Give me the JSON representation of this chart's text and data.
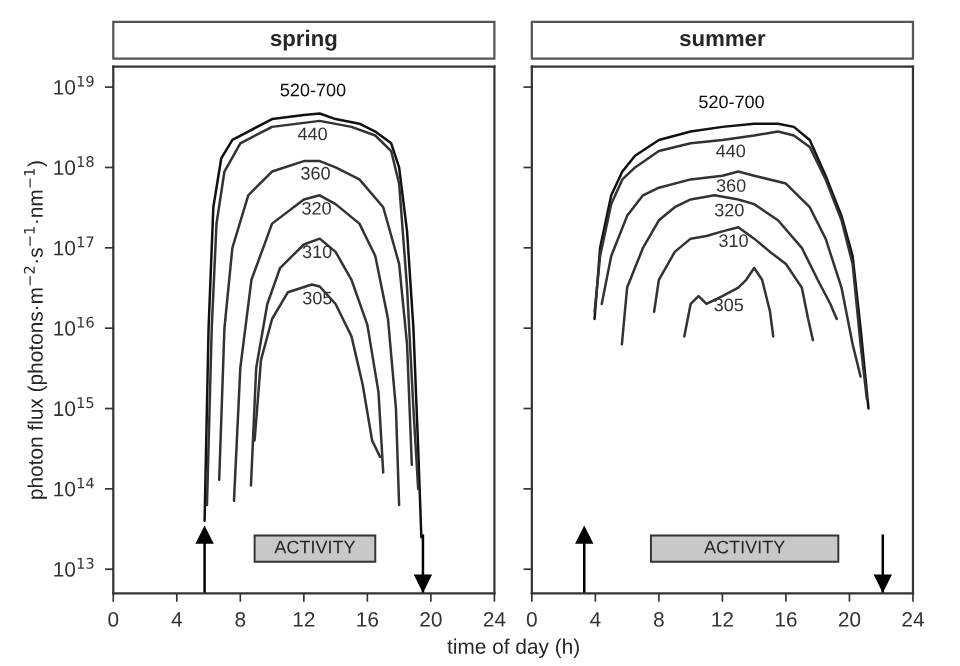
{
  "chart_data": [
    {
      "type": "line",
      "title": "spring",
      "xlabel": "time of day (h)",
      "ylabel": "photon flux (photons·m$^{−2}$·s$^{−1}$·nm$^{−1}$)",
      "log": true,
      "grid": false,
      "legend": false,
      "marker": "none",
      "line_style": "solid",
      "xlim": [
        0,
        24
      ],
      "xticks": [
        0,
        4,
        8,
        12,
        16,
        20,
        24
      ],
      "ylim": [
        5000000000000.0,
        1.8e+19
      ],
      "yticks": [
        {
          "value": 10000000000000.0,
          "label": "10$^{13}$"
        },
        {
          "value": 100000000000000.0,
          "label": "10$^{14}$"
        },
        {
          "value": 1000000000000000.0,
          "label": "10$^{15}$"
        },
        {
          "value": 1e+16,
          "label": "10$^{16}$"
        },
        {
          "value": 1e+17,
          "label": "10$^{17}$"
        },
        {
          "value": 1e+18,
          "label": "10$^{18}$"
        },
        {
          "value": 1e+19,
          "label": "10$^{19}$"
        }
      ],
      "series": [
        {
          "name": "520-700",
          "color": "#111111",
          "x": [
            5.75,
            6.0,
            6.3,
            6.8,
            7.5,
            8.5,
            10,
            12,
            13,
            14,
            15.5,
            16.5,
            17.5,
            18,
            18.5,
            18.9,
            19.2,
            19.4
          ],
          "values": [
            40000000000000.0,
            1e+16,
            3.2e+17,
            1.3e+18,
            2.2e+18,
            2.8e+18,
            4e+18,
            4.5e+18,
            4.7e+18,
            4e+18,
            3.5e+18,
            2.8e+18,
            2e+18,
            1e+18,
            1.6e+17,
            1e+16,
            320000000000000.0,
            25000000000000.0
          ]
        },
        {
          "name": "440",
          "color": "#333333",
          "x": [
            5.9,
            6.2,
            6.5,
            7,
            8,
            10,
            13,
            15,
            16.5,
            17.5,
            18,
            18.5,
            18.9,
            19.2
          ],
          "values": [
            63000000000000.0,
            1e+16,
            2e+17,
            8.9e+17,
            2e+18,
            3.2e+18,
            3.8e+18,
            3.2e+18,
            2.5e+18,
            1.6e+18,
            6.3e+17,
            3.2e+16,
            1000000000000000.0,
            100000000000000.0
          ]
        },
        {
          "name": "360",
          "color": "#333333",
          "x": [
            6.67,
            7,
            7.5,
            8.5,
            10,
            12,
            13,
            14,
            15.5,
            17,
            18,
            18.5,
            18.8
          ],
          "values": [
            130000000000000.0,
            1e+16,
            1e+17,
            4.5e+17,
            8.9e+17,
            1.2e+18,
            1.2e+18,
            1e+18,
            7.1e+17,
            3.2e+17,
            6.3e+16,
            6300000000000000.0,
            200000000000000.0
          ]
        },
        {
          "name": "320",
          "color": "#333333",
          "x": [
            7.6,
            8,
            8.7,
            10,
            12,
            13,
            14,
            15.5,
            16.5,
            17.3,
            17.8,
            18.0
          ],
          "values": [
            71000000000000.0,
            3200000000000000.0,
            4e+16,
            2e+17,
            4e+17,
            4.5e+17,
            3.5e+17,
            2e+17,
            7.9e+16,
            1.3e+16,
            1000000000000000.0,
            63000000000000.0
          ]
        },
        {
          "name": "310",
          "color": "#333333",
          "x": [
            8.67,
            9,
            9.7,
            10.5,
            12,
            13,
            14,
            15,
            16,
            16.7,
            17.0
          ],
          "values": [
            110000000000000.0,
            3200000000000000.0,
            2e+16,
            5.6e+16,
            1.1e+17,
            1.3e+17,
            8.9e+16,
            4e+16,
            1.1e+16,
            1600000000000000.0,
            160000000000000.0
          ]
        },
        {
          "name": "305",
          "color": "#333333",
          "x": [
            8.9,
            9.3,
            10,
            11,
            12.5,
            13,
            14,
            15,
            15.7,
            16.3,
            16.8
          ],
          "values": [
            400000000000000.0,
            4000000000000000.0,
            1.3e+16,
            2.8e+16,
            3.5e+16,
            3.3e+16,
            2e+16,
            7900000000000000.0,
            2000000000000000.0,
            400000000000000.0,
            250000000000000.0
          ]
        }
      ],
      "ref_lines": [
        {
          "axis": "x",
          "value": 5.75,
          "color": "#000000"
        },
        {
          "axis": "x",
          "value": 19.5,
          "color": "#000000"
        }
      ],
      "bands": [
        {
          "axis": "x",
          "from": 8.9,
          "to": 16.5,
          "label": "ACTIVITY",
          "color": "#c8c8c8"
        }
      ]
    },
    {
      "type": "line",
      "title": "summer",
      "log": true,
      "grid": false,
      "legend": false,
      "marker": "none",
      "line_style": "solid",
      "tick_labels": "x",
      "xlim": [
        0,
        24
      ],
      "xticks": [
        0,
        4,
        8,
        12,
        16,
        20,
        24
      ],
      "ylim": [
        5000000000000.0,
        1.8e+19
      ],
      "yticks": [
        {
          "value": 10000000000000.0,
          "label": null
        },
        {
          "value": 100000000000000.0,
          "label": null
        },
        {
          "value": 1000000000000000.0,
          "label": null
        },
        {
          "value": 1e+16,
          "label": null
        },
        {
          "value": 1e+17,
          "label": null
        },
        {
          "value": 1e+18,
          "label": null
        },
        {
          "value": 1e+19,
          "label": null
        }
      ],
      "series": [
        {
          "name": "520-700",
          "color": "#111111",
          "x": [
            3.95,
            4.3,
            5,
            5.7,
            6.5,
            8,
            10,
            12,
            14,
            15.5,
            16.5,
            17.5,
            18.5,
            19.5,
            20.2,
            20.7,
            21.2
          ],
          "values": [
            1.3e+16,
            1e+17,
            4.5e+17,
            8.9e+17,
            1.4e+18,
            2.2e+18,
            2.8e+18,
            3.2e+18,
            3.5e+18,
            3.5e+18,
            3.2e+18,
            2.2e+18,
            7.9e+17,
            2.5e+17,
            7.9e+16,
            1e+16,
            1000000000000000.0
          ]
        },
        {
          "name": "440",
          "color": "#333333",
          "x": [
            3.95,
            4.3,
            5,
            5.7,
            6.5,
            8,
            10,
            12,
            14,
            15.5,
            16.5,
            17.5,
            18.5,
            19.5,
            20.2,
            20.7,
            21.1
          ],
          "values": [
            1.6e+16,
            7.9e+16,
            3.5e+17,
            7.1e+17,
            1e+18,
            1.6e+18,
            2e+18,
            2.2e+18,
            2.5e+18,
            2.8e+18,
            2.5e+18,
            1.8e+18,
            7.1e+17,
            2.2e+17,
            6.3e+16,
            6300000000000000.0,
            1300000000000000.0
          ]
        },
        {
          "name": "360",
          "color": "#333333",
          "x": [
            4.4,
            5,
            6,
            7,
            8,
            10,
            12,
            13,
            14,
            16,
            17.5,
            18.5,
            19.5,
            20.2,
            20.7
          ],
          "values": [
            2e+16,
            7.9e+16,
            2.5e+17,
            4.5e+17,
            5.6e+17,
            7.1e+17,
            7.9e+17,
            8.9e+17,
            7.9e+17,
            6.3e+17,
            3.2e+17,
            1.3e+17,
            3.2e+16,
            6300000000000000.0,
            2500000000000000.0
          ]
        },
        {
          "name": "320",
          "color": "#333333",
          "x": [
            5.67,
            6,
            7,
            8,
            9,
            10,
            11.5,
            13,
            14,
            15.5,
            17,
            18,
            18.8,
            19.2
          ],
          "values": [
            6300000000000000.0,
            3.2e+16,
            1e+17,
            2.2e+17,
            3.2e+17,
            4e+17,
            4.5e+17,
            4e+17,
            3.5e+17,
            2.2e+17,
            1e+17,
            4e+16,
            2e+16,
            1.3e+16
          ]
        },
        {
          "name": "310",
          "color": "#333333",
          "x": [
            7.7,
            8,
            9,
            10,
            11,
            12,
            13,
            14,
            15,
            16,
            17,
            17.4,
            17.7
          ],
          "values": [
            1.6e+16,
            4e+16,
            8.9e+16,
            1.3e+17,
            1.4e+17,
            1.6e+17,
            1.8e+17,
            1.3e+17,
            8.9e+16,
            6.3e+16,
            3.2e+16,
            1.3e+16,
            7100000000000000.0
          ]
        },
        {
          "name": "305",
          "color": "#333333",
          "x": [
            9.6,
            10,
            10.5,
            11,
            12,
            13,
            13.5,
            14,
            14.5,
            15.0,
            15.2
          ],
          "values": [
            7900000000000000.0,
            2e+16,
            2.5e+16,
            2e+16,
            2.5e+16,
            3.2e+16,
            4e+16,
            5.6e+16,
            4e+16,
            1.6e+16,
            7900000000000000.0
          ]
        }
      ],
      "ref_lines": [
        {
          "axis": "x",
          "value": 3.3,
          "color": "#000000"
        },
        {
          "axis": "x",
          "value": 22.1,
          "color": "#000000"
        }
      ],
      "bands": [
        {
          "axis": "x",
          "from": 7.5,
          "to": 19.3,
          "label": "ACTIVITY",
          "color": "#c8c8c8"
        }
      ]
    }
  ]
}
